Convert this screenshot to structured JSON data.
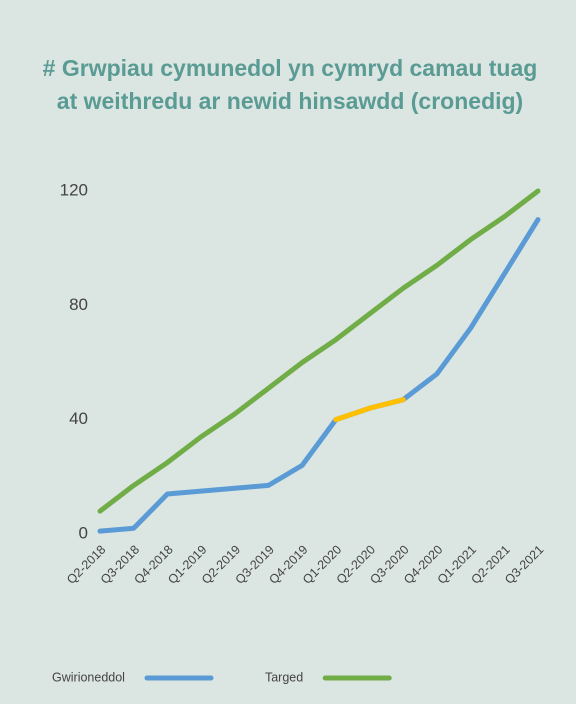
{
  "chart_data": {
    "type": "line",
    "title": "# Grwpiau cymunedol yn cymryd camau tuag at weithredu ar newid hinsawdd (cronedig)",
    "categories": [
      "Q2-2018",
      "Q3-2018",
      "Q4-2018",
      "Q1-2019",
      "Q2-2019",
      "Q3-2019",
      "Q4-2019",
      "Q1-2020",
      "Q2-2020",
      "Q3-2020",
      "Q4-2020",
      "Q1-2021",
      "Q2-2021",
      "Q3-2021"
    ],
    "series": [
      {
        "name": "Gwirioneddol",
        "color": "#5b9bd5",
        "values": [
          1,
          2,
          14,
          15,
          16,
          17,
          24,
          40,
          44,
          47,
          56,
          72,
          91,
          110
        ],
        "highlight_color": "#ffc000",
        "highlight_range": [
          "Q1-2020",
          "Q3-2020"
        ]
      },
      {
        "name": "Targed",
        "color": "#70ad47",
        "values": [
          8,
          17,
          25,
          34,
          42,
          51,
          60,
          68,
          77,
          86,
          94,
          103,
          111,
          120
        ]
      }
    ],
    "ylim": [
      0,
      120
    ],
    "yticks": [
      0,
      40,
      80,
      120
    ],
    "grid": false,
    "legend": "bottom"
  }
}
